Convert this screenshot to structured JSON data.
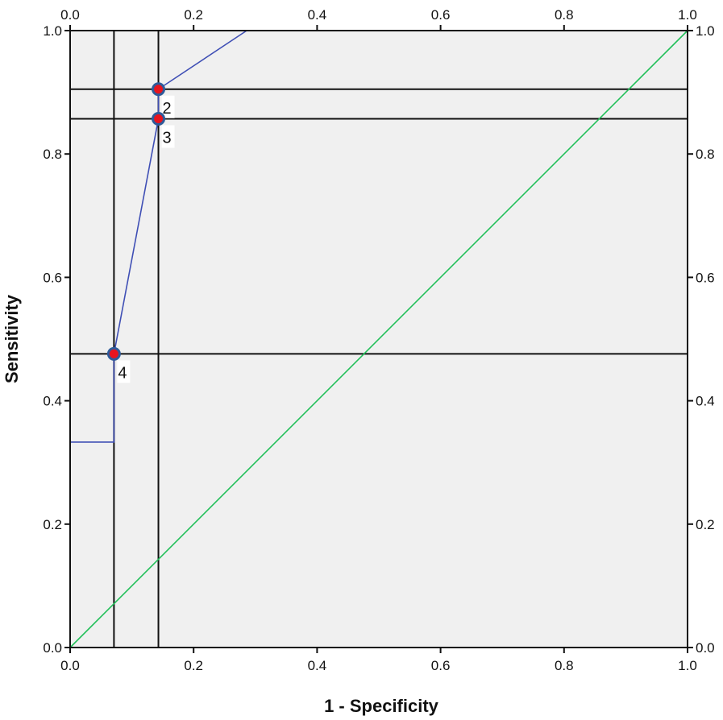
{
  "chart_data": {
    "type": "line",
    "title": "",
    "xlabel": "1 - Specificity",
    "ylabel": "Sensitivity",
    "xlim": [
      0,
      1
    ],
    "ylim": [
      0,
      1
    ],
    "x_ticks": [
      "0.0",
      "0.2",
      "0.4",
      "0.6",
      "0.8",
      "1.0"
    ],
    "y_ticks": [
      "0.0",
      "0.2",
      "0.4",
      "0.6",
      "0.8",
      "1.0"
    ],
    "grid": false,
    "background": "#f0f0f0",
    "series": [
      {
        "name": "ROC curve",
        "color": "#3f4fb5",
        "x": [
          0.0,
          0.0,
          0.071,
          0.071,
          0.143,
          0.143,
          0.286
        ],
        "y": [
          0.0,
          0.333,
          0.333,
          0.476,
          0.857,
          0.905,
          1.0
        ]
      },
      {
        "name": "Reference line",
        "color": "#22c05a",
        "x": [
          0.0,
          1.0
        ],
        "y": [
          0.0,
          1.0
        ]
      }
    ],
    "reference_lines": {
      "vertical": [
        0.071,
        0.143
      ],
      "horizontal": [
        0.905,
        0.857,
        0.476
      ]
    },
    "annotations": [
      {
        "label": "2",
        "x": 0.143,
        "y": 0.905
      },
      {
        "label": "3",
        "x": 0.143,
        "y": 0.857
      },
      {
        "label": "4",
        "x": 0.071,
        "y": 0.476
      }
    ],
    "marker_fill": "#e8141e",
    "marker_stroke": "#2e5b9a"
  }
}
